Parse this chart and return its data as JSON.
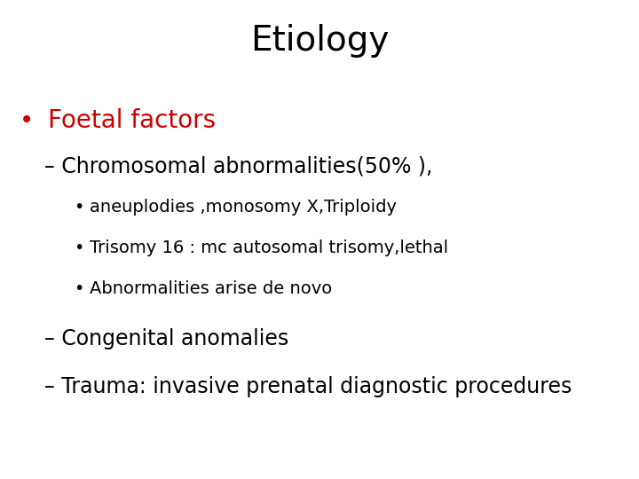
{
  "title": "Etiology",
  "title_fontsize": 28,
  "title_color": "#000000",
  "background_color": "#ffffff",
  "bullet1_text": "Foetal factors",
  "bullet1_color": "#cc0000",
  "bullet1_fontsize": 20,
  "sub1_text": "– Chromosomal abnormalities(50% ),",
  "sub1_fontsize": 17,
  "sub1_color": "#000000",
  "sub_sub_items": [
    "aneuplodies ,monosomy X,Triploidy",
    "Trisomy 16 : mc autosomal trisomy,lethal",
    "Abnormalities arise de novo"
  ],
  "sub_sub_fontsize": 14,
  "sub_sub_color": "#000000",
  "sub2_text": "– Congenital anomalies",
  "sub2_fontsize": 17,
  "sub2_color": "#000000",
  "sub3_text": "– Trauma: invasive prenatal diagnostic procedures",
  "sub3_fontsize": 17,
  "sub3_color": "#000000",
  "bullet_marker": "•",
  "bullet_marker_color": "#cc0000",
  "sub_bullet_marker": "•",
  "sub_bullet_marker_color": "#000000",
  "figwidth": 7.2,
  "figheight": 5.4,
  "dpi": 100
}
